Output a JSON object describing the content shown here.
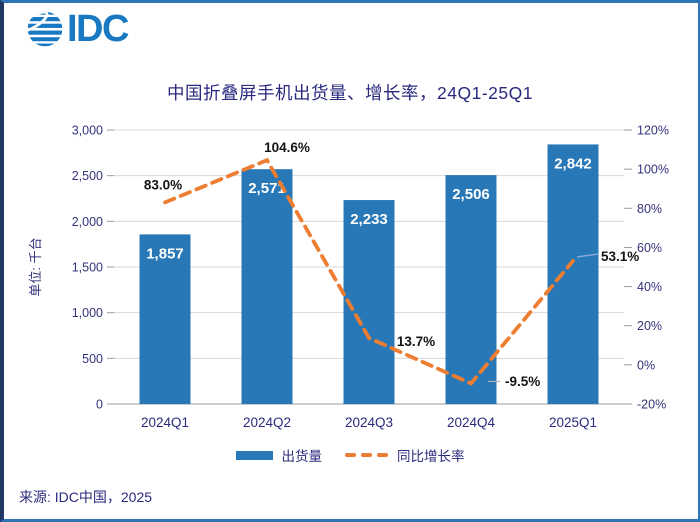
{
  "logo": {
    "text": "IDC"
  },
  "chart_data": {
    "type": "bar",
    "title": "中国折叠屏手机出货量、增长率，24Q1-25Q1",
    "categories": [
      "2024Q1",
      "2024Q2",
      "2024Q3",
      "2024Q4",
      "2025Q1"
    ],
    "series": [
      {
        "name": "出货量",
        "type": "bar",
        "axis": "left",
        "color": "#2878B8",
        "values": [
          1857,
          2571,
          2233,
          2506,
          2842
        ],
        "value_labels": [
          "1,857",
          "2,571",
          "2,233",
          "2,506",
          "2,842"
        ]
      },
      {
        "name": "同比增长率",
        "type": "line",
        "style": "dashed",
        "axis": "right",
        "color": "#ED7D31",
        "values": [
          83.0,
          104.6,
          13.7,
          -9.5,
          53.1
        ],
        "value_labels": [
          "83.0%",
          "104.6%",
          "13.7%",
          "-9.5%",
          "53.1%"
        ]
      }
    ],
    "ylabel_left": "单位: 千台",
    "axes": {
      "left": {
        "min": 0,
        "max": 3000,
        "tick_labels": [
          "0",
          "500",
          "1,000",
          "1,500",
          "2,000",
          "2,500",
          "3,000"
        ]
      },
      "right": {
        "min": -20,
        "max": 120,
        "tick_labels": [
          "-20%",
          "0%",
          "20%",
          "40%",
          "60%",
          "80%",
          "100%",
          "120%"
        ]
      }
    },
    "grid": true,
    "legend_position": "bottom"
  },
  "footer": {
    "source": "来源: IDC中国，2025"
  }
}
